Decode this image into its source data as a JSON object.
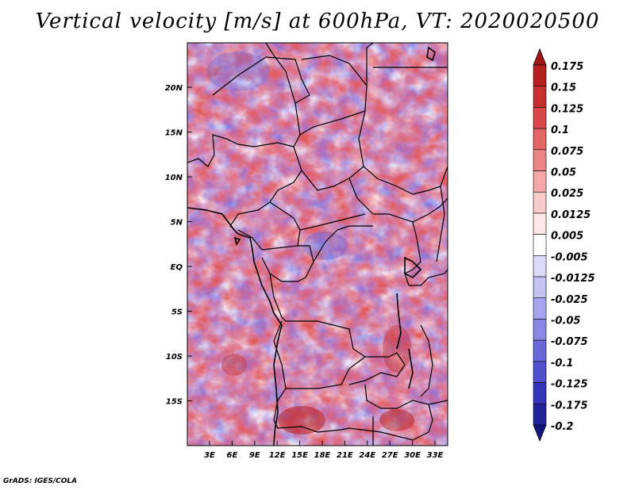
{
  "title": "Vertical velocity [m/s] at 600hPa, VT: 2020020500",
  "footer": "GrADS: IGES/COLA",
  "map": {
    "lat_labels": [
      "20N",
      "15N",
      "10N",
      "5N",
      "EQ",
      "5S",
      "10S",
      "15S"
    ],
    "lon_labels": [
      "3E",
      "6E",
      "9E",
      "12E",
      "15E",
      "18E",
      "21E",
      "24E",
      "27E",
      "30E",
      "33E"
    ]
  },
  "colorbar": {
    "levels": [
      "0.175",
      "0.15",
      "0.125",
      "0.1",
      "0.075",
      "0.05",
      "0.025",
      "0.0125",
      "0.005",
      "-0.005",
      "-0.0125",
      "-0.025",
      "-0.05",
      "-0.075",
      "-0.1",
      "-0.125",
      "-0.175",
      "-0.2"
    ],
    "colors": [
      "#a01515",
      "#b72020",
      "#c83030",
      "#d84848",
      "#e36565",
      "#ec8686",
      "#f4a8a8",
      "#f9cccc",
      "#fde8e8",
      "#ffffff",
      "#dcdcf8",
      "#c3c3f3",
      "#a5a5ee",
      "#8787e6",
      "#6969db",
      "#4f4fcf",
      "#3636b8",
      "#23239c",
      "#141480"
    ]
  }
}
